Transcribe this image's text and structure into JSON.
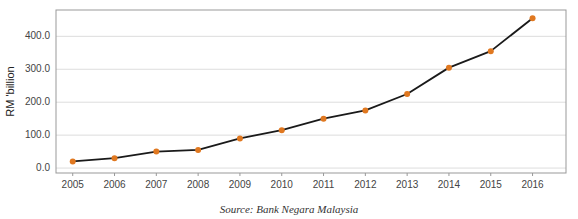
{
  "chart_data": {
    "type": "line",
    "x": [
      2005,
      2006,
      2007,
      2008,
      2009,
      2010,
      2011,
      2012,
      2013,
      2014,
      2015,
      2016
    ],
    "values": [
      20.0,
      30.0,
      50.0,
      55.0,
      90.0,
      115.0,
      150.0,
      175.0,
      225.0,
      305.0,
      355.0,
      455.0
    ],
    "color": "#1a1a1a",
    "colors": [
      "#e07820",
      "#e07820",
      "#e07820",
      "#e07820",
      "#e07820",
      "#e07820",
      "#e07820",
      "#e07820",
      "#e07820",
      "#e07820",
      "#e07820",
      "#e07820"
    ],
    "marker": "circle",
    "y_label": "RM 'billion",
    "annotations": [
      "Source: Bank Negara Malaysia"
    ],
    "xlim": [
      2004.6,
      2016.8
    ],
    "xticks": [
      2005,
      2006,
      2007,
      2008,
      2009,
      2010,
      2011,
      2012,
      2013,
      2014,
      2015,
      2016
    ],
    "ylim": [
      -15,
      480
    ],
    "yticks": [
      {
        "value": 0.0,
        "label": "0.0"
      },
      {
        "value": 100.0,
        "label": "100.0"
      },
      {
        "value": 200.0,
        "label": "200.0"
      },
      {
        "value": 300.0,
        "label": "300.0"
      },
      {
        "value": 400.0,
        "label": "400.0"
      }
    ],
    "grid": true
  }
}
